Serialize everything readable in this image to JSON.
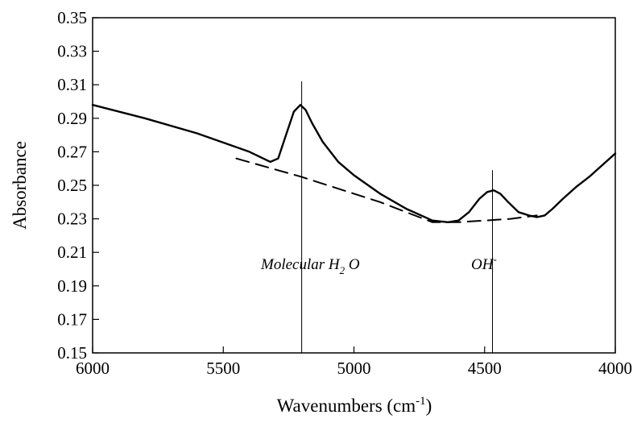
{
  "chart_data": {
    "type": "line",
    "xlabel_main": "Wavenumbers (cm",
    "xlabel_sup": "-1",
    "xlabel_end": ")",
    "ylabel": "Absorbance",
    "x_ticks": [
      "6000",
      "5500",
      "5000",
      "4500",
      "4000"
    ],
    "x_tick_values": [
      6000,
      5500,
      5000,
      4500,
      4000
    ],
    "y_ticks": [
      "0.15",
      "0.17",
      "0.19",
      "0.21",
      "0.23",
      "0.25",
      "0.27",
      "0.29",
      "0.31",
      "0.33",
      "0.35"
    ],
    "y_tick_values": [
      0.15,
      0.17,
      0.19,
      0.21,
      0.23,
      0.25,
      0.27,
      0.29,
      0.31,
      0.33,
      0.35
    ],
    "xlim": [
      6000,
      4000
    ],
    "ylim": [
      0.15,
      0.35
    ],
    "x_reversed": true,
    "grid": false,
    "series": [
      {
        "style": "solid",
        "x": [
          6000,
          5800,
          5600,
          5400,
          5320,
          5290,
          5260,
          5230,
          5205,
          5185,
          5160,
          5120,
          5060,
          5000,
          4900,
          4800,
          4700,
          4640,
          4600,
          4560,
          4520,
          4490,
          4465,
          4440,
          4410,
          4370,
          4330,
          4300,
          4270,
          4240,
          4200,
          4150,
          4100,
          4050,
          4000
        ],
        "y": [
          0.298,
          0.29,
          0.281,
          0.27,
          0.264,
          0.266,
          0.28,
          0.294,
          0.298,
          0.295,
          0.287,
          0.276,
          0.264,
          0.256,
          0.245,
          0.236,
          0.229,
          0.228,
          0.229,
          0.234,
          0.242,
          0.246,
          0.247,
          0.245,
          0.24,
          0.234,
          0.232,
          0.231,
          0.232,
          0.236,
          0.242,
          0.249,
          0.255,
          0.262,
          0.269
        ]
      },
      {
        "style": "dashed",
        "x": [
          5450,
          5200,
          4900,
          4700,
          4600,
          4400,
          4300
        ],
        "y": [
          0.266,
          0.255,
          0.24,
          0.228,
          0.228,
          0.23,
          0.232
        ]
      }
    ],
    "markers": [
      {
        "x": 5200,
        "y_top": 0.312,
        "label_main": "Molecular H",
        "label_sub": "2",
        "label_end": " O"
      },
      {
        "x": 4470,
        "y_top": 0.259,
        "label_main": "OH",
        "label_sup": "-"
      }
    ]
  }
}
